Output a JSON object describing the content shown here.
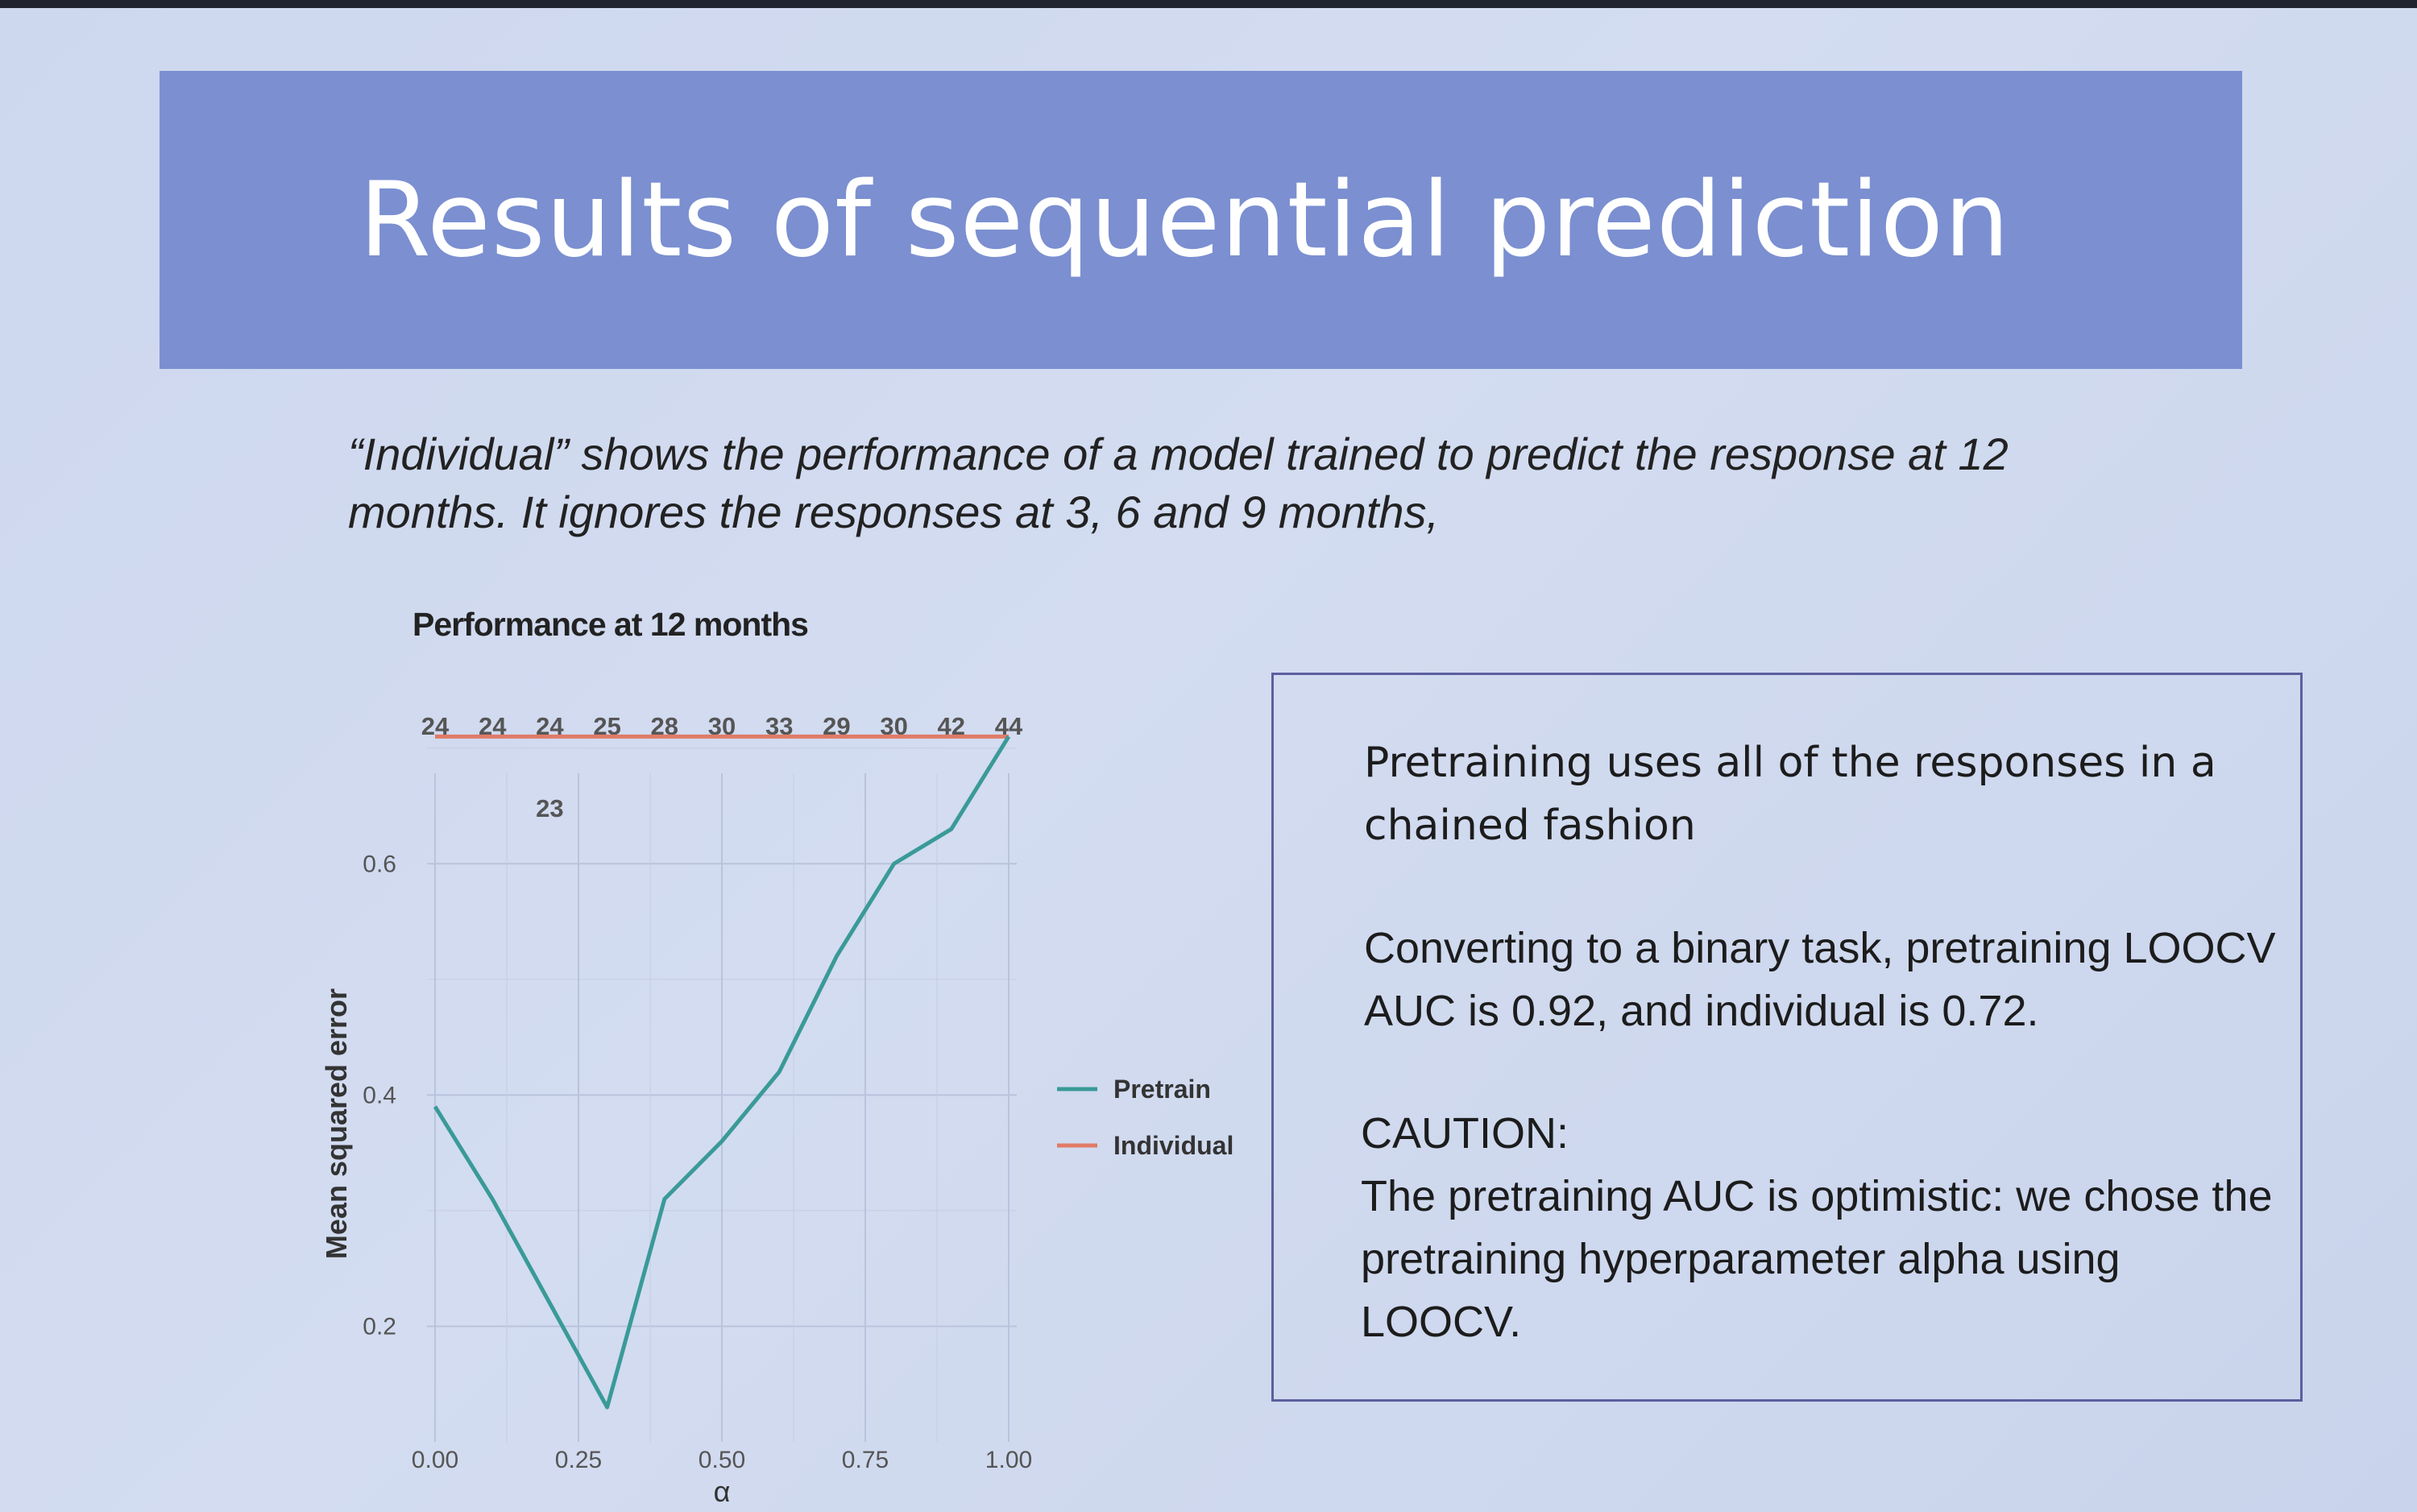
{
  "slide": {
    "title": "Results of sequential prediction",
    "intro": "“Individual” shows the performance of a model trained to predict the response at 12 months. It ignores the responses at 3, 6 and 9 months,"
  },
  "callout": {
    "para1": "Pretraining uses all of the responses in a chained fashion",
    "para2": "Converting to a binary task, pretraining LOOCV AUC is 0.92, and individual is 0.72.",
    "para3": "CAUTION:",
    "para4": "The pretraining AUC is optimistic: we chose the pretraining hyperparameter alpha using LOOCV."
  },
  "chart_data": {
    "type": "line",
    "title": "Performance at 12 months",
    "xlabel": "α",
    "ylabel": "Mean squared error",
    "xlim": [
      0,
      1
    ],
    "ylim": [
      0.1,
      0.72
    ],
    "xticks": [
      0.0,
      0.25,
      0.5,
      0.75,
      1.0
    ],
    "xtick_labels": [
      "0.00",
      "0.25",
      "0.50",
      "0.75",
      "1.00"
    ],
    "yticks": [
      0.2,
      0.4,
      0.6
    ],
    "ytick_labels": [
      "0.2",
      "0.4",
      "0.6"
    ],
    "grid": true,
    "legend_position": "right",
    "top_labels": {
      "x": [
        0.0,
        0.1,
        0.2,
        0.3,
        0.4,
        0.5,
        0.6,
        0.7,
        0.8,
        0.9,
        1.0
      ],
      "labels": [
        "24",
        "24",
        "24",
        "25",
        "28",
        "30",
        "33",
        "29",
        "30",
        "42",
        "44"
      ]
    },
    "annotation": {
      "x": 0.2,
      "text": "23"
    },
    "series": [
      {
        "name": "Pretrain",
        "color": "#3a9a98",
        "x": [
          0.0,
          0.1,
          0.2,
          0.3,
          0.4,
          0.5,
          0.6,
          0.7,
          0.8,
          0.9,
          1.0
        ],
        "y": [
          0.39,
          0.31,
          0.22,
          0.13,
          0.31,
          0.36,
          0.42,
          0.52,
          0.6,
          0.63,
          0.71
        ]
      },
      {
        "name": "Individual",
        "color": "#e07b67",
        "x": [
          0.0,
          1.0
        ],
        "y": [
          0.71,
          0.71
        ]
      }
    ]
  }
}
